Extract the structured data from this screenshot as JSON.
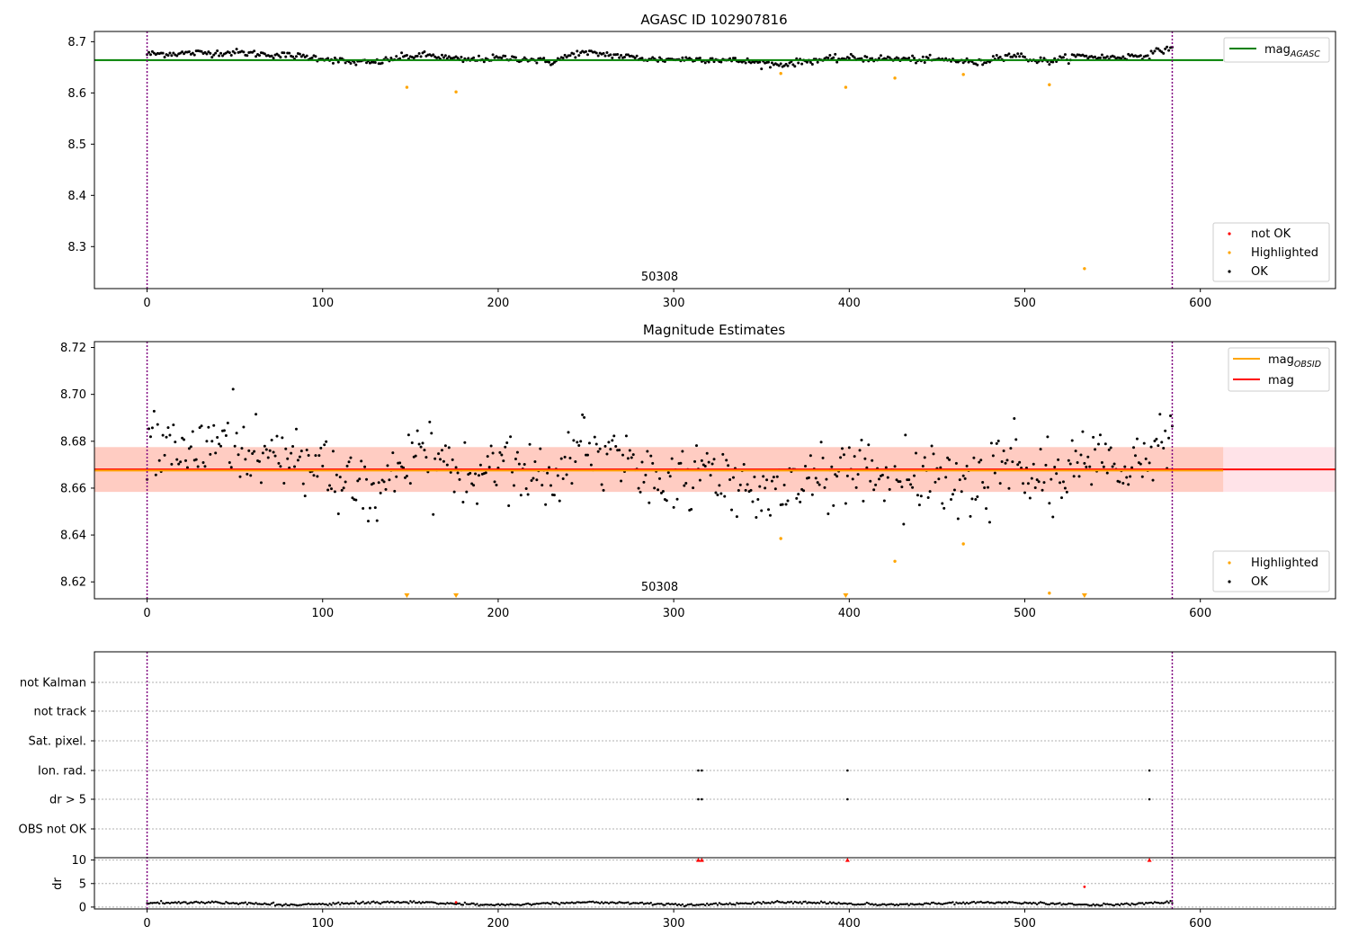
{
  "chart_data": [
    {
      "type": "scatter",
      "title": "AGASC ID 102907816",
      "xlim": [
        -30,
        677
      ],
      "ylim": [
        8.218,
        8.72
      ],
      "xticks": [
        0,
        100,
        200,
        300,
        400,
        500,
        600
      ],
      "yticks": [
        8.3,
        8.4,
        8.5,
        8.6,
        8.7
      ],
      "ytick_labels": [
        "8.3",
        "8.4",
        "8.5",
        "8.6",
        "8.7"
      ],
      "annotation": "50308",
      "annotation_x": 292,
      "vlines": [
        0,
        584
      ],
      "hline": {
        "y": 8.664,
        "x_end": 613,
        "color": "#008000",
        "label": "mag_AGASC"
      },
      "legend_top": {
        "label": "mag",
        "subscript": "AGASC"
      },
      "legend_bottom": [
        {
          "label": "not OK",
          "color": "#ff0000"
        },
        {
          "label": "Highlighted",
          "color": "#ffa500"
        },
        {
          "label": "OK",
          "color": "#000000"
        }
      ],
      "series_ok": {
        "name": "OK",
        "x_start": 0,
        "x_end": 584,
        "trend_x": [
          0,
          30,
          50,
          80,
          100,
          115,
          130,
          145,
          160,
          180,
          200,
          215,
          230,
          245,
          260,
          275,
          290,
          305,
          320,
          340,
          360,
          380,
          400,
          420,
          440,
          460,
          475,
          485,
          495,
          505,
          515,
          530,
          550,
          570,
          584
        ],
        "trend_y": [
          8.676,
          8.678,
          8.679,
          8.673,
          8.668,
          8.66,
          8.659,
          8.67,
          8.674,
          8.664,
          8.668,
          8.667,
          8.66,
          8.678,
          8.676,
          8.67,
          8.665,
          8.666,
          8.666,
          8.662,
          8.655,
          8.664,
          8.668,
          8.667,
          8.665,
          8.664,
          8.658,
          8.672,
          8.674,
          8.664,
          8.662,
          8.672,
          8.669,
          8.674,
          8.69
        ],
        "noise": 0.006
      },
      "series_highlighted": {
        "name": "Highlighted",
        "x": [
          148,
          176,
          361,
          398,
          426,
          465,
          514,
          534
        ],
        "y": [
          8.611,
          8.602,
          8.638,
          8.611,
          8.629,
          8.636,
          8.616,
          8.257
        ]
      }
    },
    {
      "type": "scatter",
      "title": "Magnitude Estimates",
      "xlim": [
        -30,
        677
      ],
      "ylim": [
        8.6128,
        8.7225
      ],
      "xticks": [
        0,
        100,
        200,
        300,
        400,
        500,
        600
      ],
      "yticks": [
        8.62,
        8.64,
        8.66,
        8.68,
        8.7,
        8.72
      ],
      "ytick_labels": [
        "8.62",
        "8.64",
        "8.66",
        "8.68",
        "8.70",
        "8.72"
      ],
      "annotation": "50308",
      "annotation_x": 292,
      "vlines": [
        0,
        584
      ],
      "mag_obsid": {
        "y": 8.6675,
        "band": [
          8.6584,
          8.6775
        ],
        "x_end": 613,
        "color": "#ffa500"
      },
      "mag": {
        "y": 8.668,
        "band": [
          8.6584,
          8.6775
        ],
        "color": "#ff0000"
      },
      "legend_top": [
        {
          "label": "mag",
          "subscript": "OBSID",
          "color": "#ffa500"
        },
        {
          "label": "mag",
          "subscript": "",
          "color": "#ff0000"
        }
      ],
      "legend_bottom": [
        {
          "label": "Highlighted",
          "color": "#ffa500"
        },
        {
          "label": "OK",
          "color": "#000000"
        }
      ],
      "series_highlighted": {
        "name": "Highlighted",
        "x": [
          361,
          465,
          426,
          514
        ],
        "y": [
          8.6385,
          8.6362,
          8.6288,
          8.6152
        ]
      },
      "out_of_range_markers": {
        "x": [
          148,
          176,
          398,
          534
        ]
      },
      "noise": 0.009
    },
    {
      "type": "scatter",
      "title": "",
      "xlim": [
        -30,
        677
      ],
      "xticks": [
        0,
        100,
        200,
        300,
        400,
        500,
        600
      ],
      "vlines": [
        0,
        584
      ],
      "flag_labels": [
        "not Kalman",
        "not track",
        "Sat. pixel.",
        "Ion. rad.",
        "dr > 5",
        "OBS not OK"
      ],
      "flag_points": [
        {
          "flag": "Ion. rad.",
          "x": [
            314,
            316,
            399,
            571
          ]
        },
        {
          "flag": "dr > 5",
          "x": [
            314,
            316,
            399,
            571
          ]
        }
      ],
      "dr": {
        "ylabel": "dr",
        "ylim": [
          -0.4,
          10.5
        ],
        "yticks": [
          0,
          5,
          10
        ],
        "ytick_labels": [
          "0",
          "5",
          "10"
        ],
        "x_start": 0,
        "x_end": 584,
        "typical_value": 0.5,
        "not_ok": {
          "x": [
            314,
            316,
            399,
            571
          ],
          "y": [
            10,
            10,
            10,
            10
          ],
          "marker": "triangle"
        },
        "outliers": {
          "x": [
            534,
            176
          ],
          "y": [
            4.3,
            1.0
          ]
        }
      }
    }
  ]
}
